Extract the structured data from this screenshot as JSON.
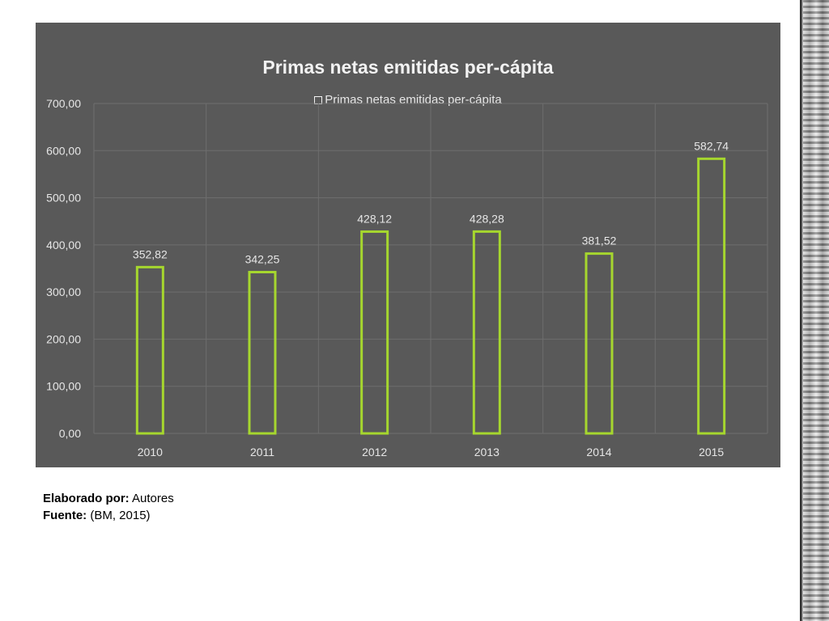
{
  "chart_data": {
    "type": "bar",
    "title": "Primas netas emitidas per-cápita",
    "legend": {
      "position": "top",
      "entries": [
        "Primas netas emitidas per-cápita"
      ]
    },
    "categories": [
      "2010",
      "2011",
      "2012",
      "2013",
      "2014",
      "2015"
    ],
    "series": [
      {
        "name": "Primas netas emitidas per-cápita",
        "values": [
          352.82,
          342.25,
          428.12,
          428.28,
          381.52,
          582.74
        ],
        "labels": [
          "352,82",
          "342,25",
          "428,12",
          "428,28",
          "381,52",
          "582,74"
        ]
      }
    ],
    "ylim": [
      0,
      700
    ],
    "yticks": [
      "0,00",
      "100,00",
      "200,00",
      "300,00",
      "400,00",
      "500,00",
      "600,00",
      "700,00"
    ],
    "grid": true,
    "xlabel": "",
    "ylabel": ""
  },
  "notes": {
    "elaborado_label": "Elaborado por:",
    "elaborado_value": " Autores",
    "fuente_label": "Fuente:",
    "fuente_value": " (BM, 2015)"
  },
  "colors": {
    "panel_bg": "#595959",
    "bar_outline": "#a6d72e",
    "gridline": "#6e6e6e",
    "text": "#e6e6e6"
  }
}
